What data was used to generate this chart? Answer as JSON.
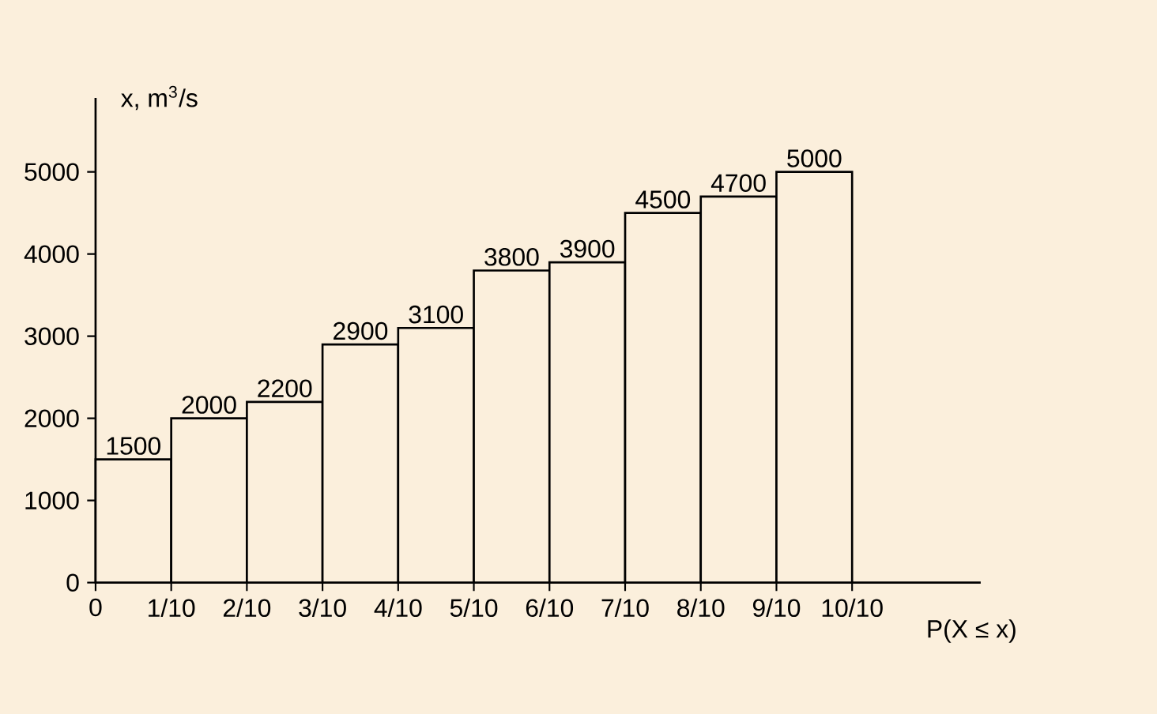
{
  "chart_data": {
    "type": "histogram",
    "ylabel": "x, m$^{3}$/s",
    "xlabel": "P(X ≤ x)",
    "bins": [
      0,
      0.1,
      0.2,
      0.3,
      0.4,
      0.5,
      0.6,
      0.7,
      0.8,
      0.9,
      1.0
    ],
    "values": [
      1500,
      2000,
      2200,
      2900,
      3100,
      3800,
      3900,
      4500,
      4700,
      5000
    ],
    "color": "#fbefdc",
    "data_labels": true,
    "xlim": [
      0,
      1.17
    ],
    "ylim": [
      0,
      5900
    ],
    "xticks": [
      0,
      {
        "value": 0.1,
        "label": "1/10"
      },
      {
        "value": 0.2,
        "label": "2/10"
      },
      {
        "value": 0.3,
        "label": "3/10"
      },
      {
        "value": 0.4,
        "label": "4/10"
      },
      {
        "value": 0.5,
        "label": "5/10"
      },
      {
        "value": 0.6,
        "label": "6/10"
      },
      {
        "value": 0.7,
        "label": "7/10"
      },
      {
        "value": 0.8,
        "label": "8/10"
      },
      {
        "value": 0.9,
        "label": "9/10"
      },
      {
        "value": 1.0,
        "label": "10/10"
      }
    ],
    "yticks": [
      0,
      1000,
      2000,
      3000,
      4000,
      5000
    ],
    "grid": false
  }
}
